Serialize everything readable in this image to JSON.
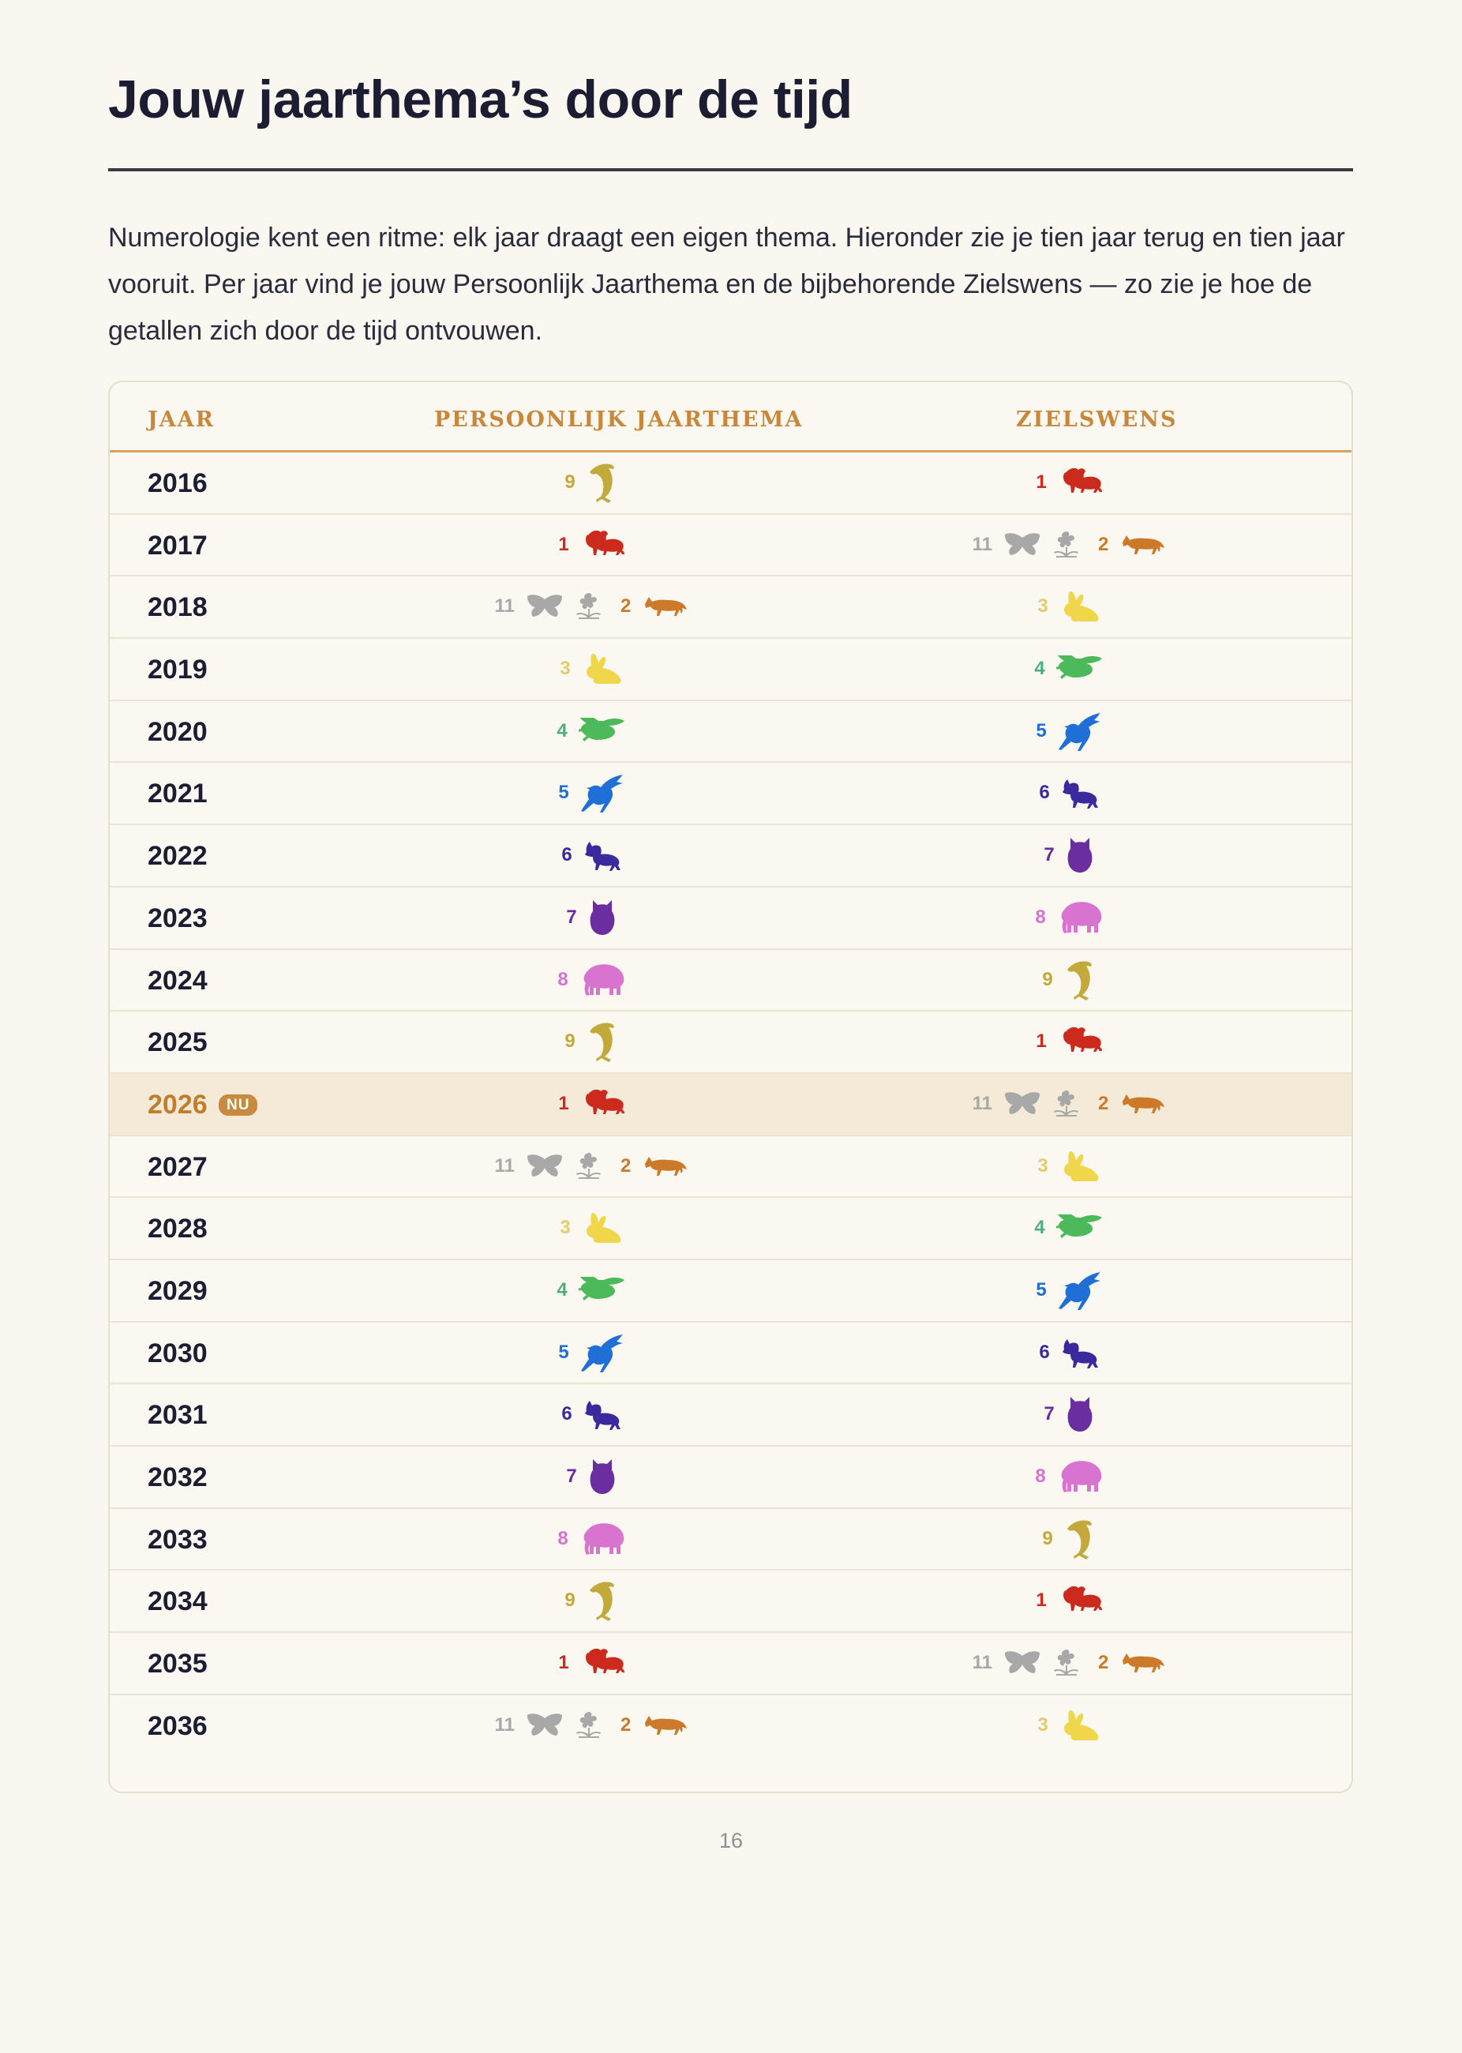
{
  "page": {
    "title": "Jouw jaarthema’s door de tijd",
    "intro": "Numerologie kent een ritme: elk jaar draagt een eigen thema. Hieronder zie je tien jaar terug en tien jaar vooruit. Per jaar vind je jouw Persoonlijk Jaarthema en de bijbehorende Zielswens — zo zie je hoe de getallen zich door de tijd ontvouwen.",
    "page_number": "16"
  },
  "table": {
    "headers": {
      "year": "JAAR",
      "theme": "PERSOONLIJK JAARTHEMA",
      "wish": "ZIELSWENS"
    },
    "current_badge": "NU",
    "rows": [
      {
        "year": "2016",
        "theme": "9",
        "wish": "1"
      },
      {
        "year": "2017",
        "theme": "1",
        "wish": "11/2"
      },
      {
        "year": "2018",
        "theme": "11/2",
        "wish": "3"
      },
      {
        "year": "2019",
        "theme": "3",
        "wish": "4"
      },
      {
        "year": "2020",
        "theme": "4",
        "wish": "5"
      },
      {
        "year": "2021",
        "theme": "5",
        "wish": "6"
      },
      {
        "year": "2022",
        "theme": "6",
        "wish": "7"
      },
      {
        "year": "2023",
        "theme": "7",
        "wish": "8"
      },
      {
        "year": "2024",
        "theme": "8",
        "wish": "9"
      },
      {
        "year": "2025",
        "theme": "9",
        "wish": "1"
      },
      {
        "year": "2026",
        "theme": "1",
        "wish": "11/2",
        "current": true
      },
      {
        "year": "2027",
        "theme": "11/2",
        "wish": "3"
      },
      {
        "year": "2028",
        "theme": "3",
        "wish": "4"
      },
      {
        "year": "2029",
        "theme": "4",
        "wish": "5"
      },
      {
        "year": "2030",
        "theme": "5",
        "wish": "6"
      },
      {
        "year": "2031",
        "theme": "6",
        "wish": "7"
      },
      {
        "year": "2032",
        "theme": "7",
        "wish": "8"
      },
      {
        "year": "2033",
        "theme": "8",
        "wish": "9"
      },
      {
        "year": "2034",
        "theme": "9",
        "wish": "1"
      },
      {
        "year": "2035",
        "theme": "1",
        "wish": "11/2"
      },
      {
        "year": "2036",
        "theme": "11/2",
        "wish": "3"
      }
    ]
  },
  "symbols": {
    "1": {
      "label": "1",
      "icons": [
        "lion-icon"
      ],
      "color": "#cc2a1c"
    },
    "11": {
      "label": "11",
      "icons": [
        "butterfly-icon",
        "flower-icon"
      ],
      "color": "#a8a8a8"
    },
    "2": {
      "label": "2",
      "icons": [
        "fox-icon"
      ],
      "color": "#cc7a2a"
    },
    "3": {
      "label": "3",
      "icons": [
        "rabbit-icon"
      ],
      "color": "#f0d64a",
      "num_color": "#e2cc6e"
    },
    "4": {
      "label": "4",
      "icons": [
        "bee-icon"
      ],
      "color": "#4cba5a",
      "num_color": "#4dae7e"
    },
    "5": {
      "label": "5",
      "icons": [
        "swallow-icon"
      ],
      "color": "#1f6fd6"
    },
    "6": {
      "label": "6",
      "icons": [
        "wolf-icon"
      ],
      "color": "#3b2a9e"
    },
    "7": {
      "label": "7",
      "icons": [
        "owl-icon"
      ],
      "color": "#6a2ea0"
    },
    "8": {
      "label": "8",
      "icons": [
        "elephant-icon"
      ],
      "color": "#d873cf"
    },
    "9": {
      "label": "9",
      "icons": [
        "dolphin-icon"
      ],
      "color": "#c2a93a"
    }
  }
}
